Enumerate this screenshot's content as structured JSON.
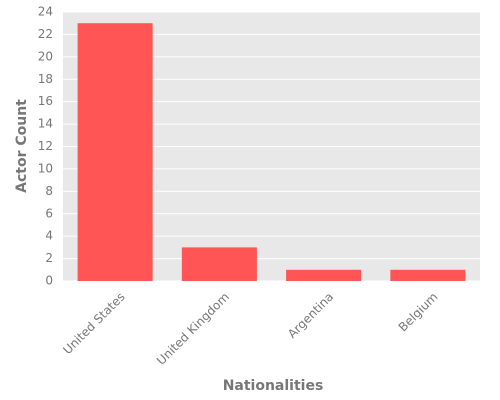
{
  "chart_data": {
    "type": "bar",
    "categories": [
      "United States",
      "United Kingdom",
      "Argentina",
      "Belgium"
    ],
    "values": [
      23,
      3,
      1,
      1
    ],
    "color": "#ff5555",
    "x_label": "Nationalities",
    "y_label": "Actor Count",
    "ylim": [
      0,
      24
    ],
    "yticks": [
      0,
      2,
      4,
      6,
      8,
      10,
      12,
      14,
      16,
      18,
      20,
      22,
      24
    ],
    "grid": true
  }
}
